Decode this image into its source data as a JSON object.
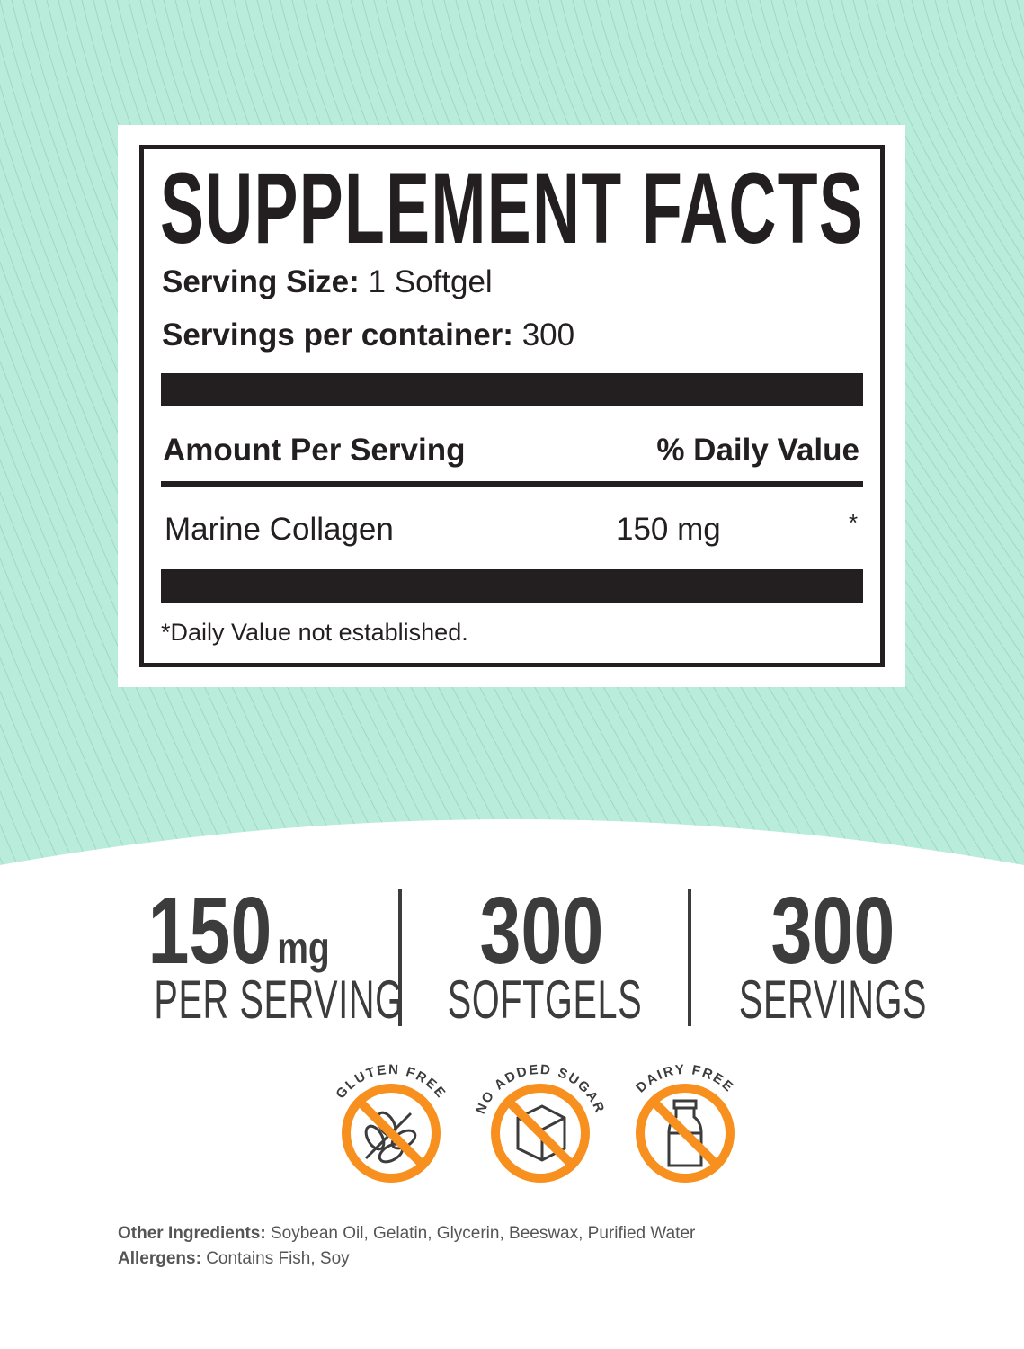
{
  "colors": {
    "background": "#b9ecdb",
    "accent": "#f7901e",
    "ink": "#231f20",
    "stat_text": "#3c3c3c"
  },
  "facts": {
    "title": "SUPPLEMENT FACTS",
    "serving_size_label": "Serving Size:",
    "serving_size_value": "1 Softgel",
    "servings_label": "Servings per container:",
    "servings_value": "300",
    "amount_header": "Amount Per Serving",
    "dv_header": "% Daily Value",
    "ingredient": {
      "name": "Marine Collagen",
      "amount": "150 mg",
      "dv": "*"
    },
    "footnote": "*Daily Value not established."
  },
  "stats": [
    {
      "value": "150",
      "unit": "mg",
      "label": "PER SERVING"
    },
    {
      "value": "300",
      "unit": "",
      "label": "SOFTGELS"
    },
    {
      "value": "300",
      "unit": "",
      "label": "SERVINGS"
    }
  ],
  "badges": [
    {
      "text": "GLUTEN FREE",
      "icon": "wheat-icon"
    },
    {
      "text": "NO ADDED SUGAR",
      "icon": "sugar-cube-icon"
    },
    {
      "text": "DAIRY FREE",
      "icon": "milk-bottle-icon"
    }
  ],
  "footer": {
    "ingredients_label": "Other Ingredients:",
    "ingredients_value": "Soybean Oil, Gelatin, Glycerin, Beeswax, Purified Water",
    "allergens_label": "Allergens:",
    "allergens_value": "Contains Fish, Soy"
  }
}
